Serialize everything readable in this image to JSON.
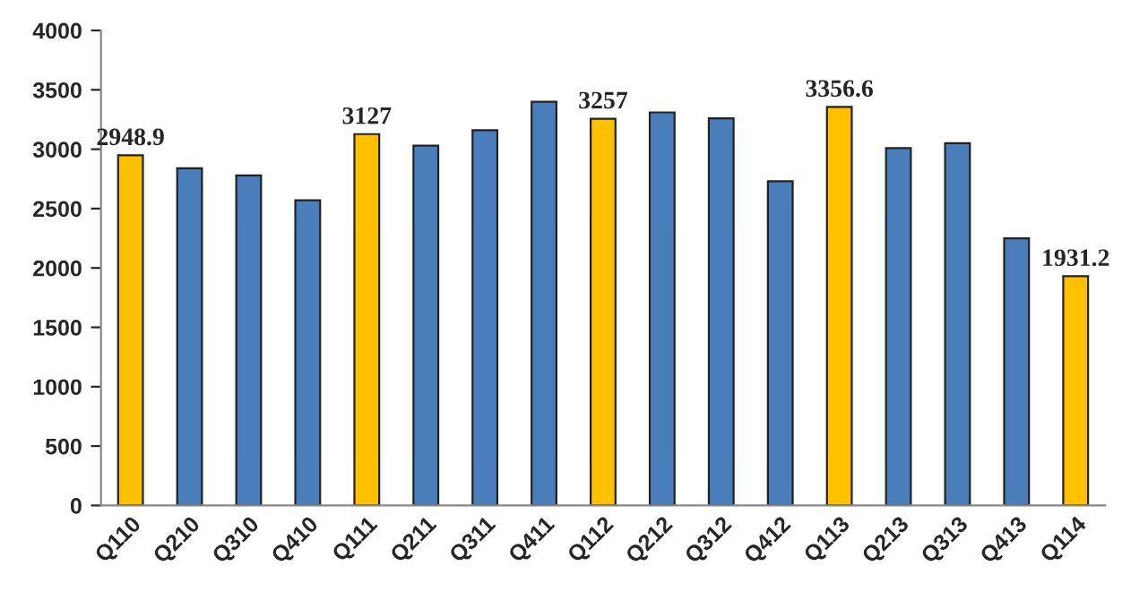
{
  "chart_data": {
    "type": "bar",
    "categories": [
      "Q110",
      "Q210",
      "Q310",
      "Q410",
      "Q111",
      "Q211",
      "Q311",
      "Q411",
      "Q112",
      "Q212",
      "Q312",
      "Q412",
      "Q113",
      "Q213",
      "Q313",
      "Q413",
      "Q114"
    ],
    "values": [
      2948.9,
      2840,
      2780,
      2570,
      3127,
      3030,
      3160,
      3400,
      3257,
      3310,
      3260,
      2730,
      3356.6,
      3010,
      3050,
      2250,
      1931.2
    ],
    "colors": [
      "#ffc000",
      "#4a7ebb",
      "#4a7ebb",
      "#4a7ebb",
      "#ffc000",
      "#4a7ebb",
      "#4a7ebb",
      "#4a7ebb",
      "#ffc000",
      "#4a7ebb",
      "#4a7ebb",
      "#4a7ebb",
      "#ffc000",
      "#4a7ebb",
      "#4a7ebb",
      "#4a7ebb",
      "#ffc000"
    ],
    "value_labels": [
      "2948.9",
      null,
      null,
      null,
      "3127",
      null,
      null,
      null,
      "3257",
      null,
      null,
      null,
      "3356.6",
      null,
      null,
      null,
      "1931.2"
    ],
    "ylim": [
      0,
      4000
    ],
    "yticks": [
      0,
      500,
      1000,
      1500,
      2000,
      2500,
      3000,
      3500,
      4000
    ],
    "grid": false,
    "legend": false
  }
}
